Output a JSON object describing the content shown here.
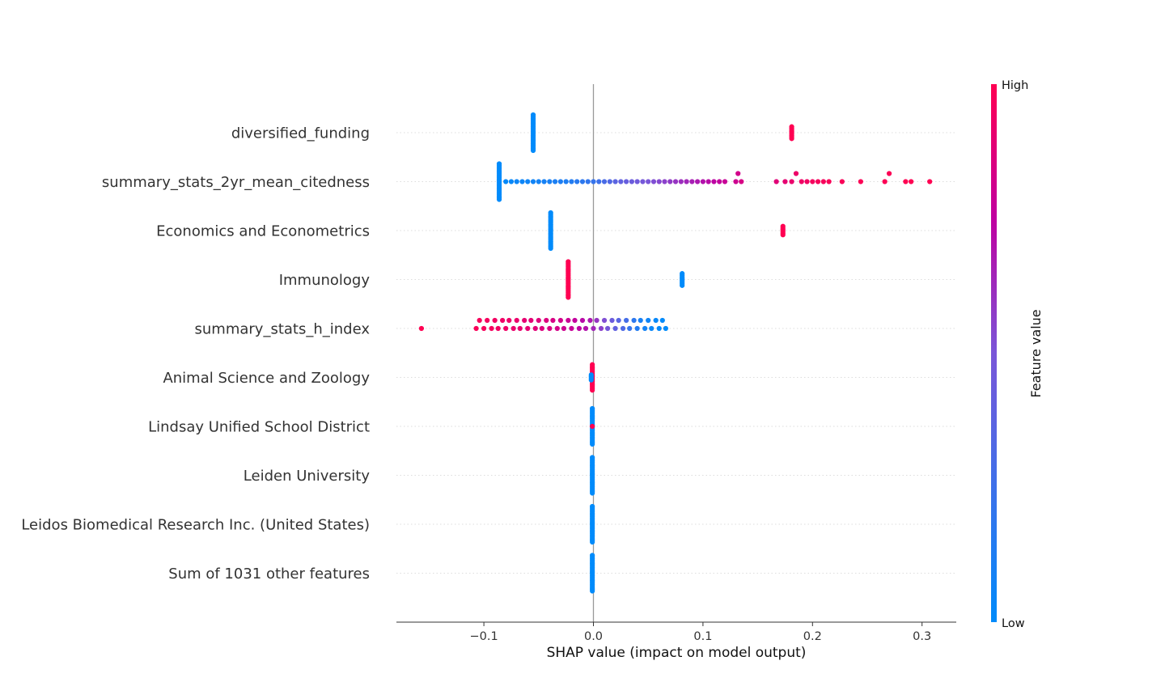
{
  "colors": {
    "low": "#008bfb",
    "high": "#ff0052",
    "axis": "#333333",
    "zero": "#999999",
    "grid": "#cccccc"
  },
  "chart_data": {
    "type": "scatter",
    "subtype": "shap-beeswarm",
    "xlabel": "SHAP value (impact on model output)",
    "xlim": [
      -0.18,
      0.33
    ],
    "xticks": [
      -0.1,
      0.0,
      0.1,
      0.2,
      0.3
    ],
    "xtick_labels": [
      "−0.1",
      "0.0",
      "0.1",
      "0.2",
      "0.3"
    ],
    "colorbar": {
      "title": "Feature value",
      "high_label": "High",
      "low_label": "Low"
    },
    "features": [
      {
        "name": "diversified_funding",
        "groups": [
          {
            "x": [
              -0.055
            ],
            "count": 22,
            "value": 0.0
          },
          {
            "x": [
              0.181
            ],
            "count": 8,
            "value": 1.0
          }
        ]
      },
      {
        "name": "summary_stats_2yr_mean_citedness",
        "groups": [
          {
            "x": [
              -0.086
            ],
            "count": 22,
            "value": 0.0
          }
        ],
        "points": [
          [
            -0.08,
            0.02
          ],
          [
            -0.075,
            0.03
          ],
          [
            -0.07,
            0.05
          ],
          [
            -0.065,
            0.05
          ],
          [
            -0.06,
            0.06
          ],
          [
            -0.055,
            0.07
          ],
          [
            -0.05,
            0.08
          ],
          [
            -0.045,
            0.09
          ],
          [
            -0.04,
            0.1
          ],
          [
            -0.035,
            0.11
          ],
          [
            -0.03,
            0.12
          ],
          [
            -0.025,
            0.12
          ],
          [
            -0.02,
            0.14
          ],
          [
            -0.015,
            0.16
          ],
          [
            -0.01,
            0.18
          ],
          [
            -0.005,
            0.2
          ],
          [
            0.0,
            0.22
          ],
          [
            0.005,
            0.25
          ],
          [
            0.01,
            0.3
          ],
          [
            0.015,
            0.33
          ],
          [
            0.02,
            0.37
          ],
          [
            0.025,
            0.4
          ],
          [
            0.03,
            0.42
          ],
          [
            0.035,
            0.44
          ],
          [
            0.04,
            0.46
          ],
          [
            0.045,
            0.48
          ],
          [
            0.05,
            0.5
          ],
          [
            0.055,
            0.52
          ],
          [
            0.06,
            0.54
          ],
          [
            0.065,
            0.56
          ],
          [
            0.07,
            0.58
          ],
          [
            0.075,
            0.6
          ],
          [
            0.08,
            0.62
          ],
          [
            0.085,
            0.64
          ],
          [
            0.09,
            0.66
          ],
          [
            0.095,
            0.68
          ],
          [
            0.1,
            0.7
          ],
          [
            0.105,
            0.72
          ],
          [
            0.11,
            0.74
          ],
          [
            0.115,
            0.76
          ],
          [
            0.12,
            0.78
          ],
          [
            0.13,
            0.8
          ],
          [
            0.132,
            0.82
          ],
          [
            0.135,
            0.84
          ],
          [
            0.167,
            0.88
          ],
          [
            0.175,
            0.9
          ],
          [
            0.181,
            0.92
          ],
          [
            0.185,
            0.93
          ],
          [
            0.19,
            0.94
          ],
          [
            0.195,
            0.95
          ],
          [
            0.2,
            0.96
          ],
          [
            0.205,
            0.97
          ],
          [
            0.21,
            0.97
          ],
          [
            0.215,
            0.98
          ],
          [
            0.227,
            0.98
          ],
          [
            0.244,
            0.99
          ],
          [
            0.266,
            0.99
          ],
          [
            0.27,
            0.99
          ],
          [
            0.285,
            1.0
          ],
          [
            0.29,
            1.0
          ],
          [
            0.307,
            1.0
          ]
        ]
      },
      {
        "name": "Economics and Econometrics",
        "groups": [
          {
            "x": [
              -0.039
            ],
            "count": 22,
            "value": 0.0
          },
          {
            "x": [
              0.173
            ],
            "count": 6,
            "value": 1.0
          }
        ]
      },
      {
        "name": "Immunology",
        "groups": [
          {
            "x": [
              -0.023
            ],
            "count": 22,
            "value": 1.0
          },
          {
            "x": [
              0.081
            ],
            "count": 8,
            "value": 0.0
          }
        ]
      },
      {
        "name": "summary_stats_h_index",
        "points": [
          [
            -0.157,
            1.0
          ],
          [
            -0.107,
            0.98
          ],
          [
            -0.104,
            0.97
          ],
          [
            -0.1,
            0.97
          ],
          [
            -0.097,
            0.96
          ],
          [
            -0.093,
            0.96
          ],
          [
            -0.09,
            0.95
          ],
          [
            -0.087,
            0.95
          ],
          [
            -0.083,
            0.94
          ],
          [
            -0.08,
            0.94
          ],
          [
            -0.077,
            0.93
          ],
          [
            -0.073,
            0.92
          ],
          [
            -0.07,
            0.92
          ],
          [
            -0.067,
            0.91
          ],
          [
            -0.063,
            0.9
          ],
          [
            -0.06,
            0.9
          ],
          [
            -0.057,
            0.89
          ],
          [
            -0.053,
            0.88
          ],
          [
            -0.05,
            0.87
          ],
          [
            -0.047,
            0.86
          ],
          [
            -0.043,
            0.86
          ],
          [
            -0.04,
            0.85
          ],
          [
            -0.037,
            0.84
          ],
          [
            -0.033,
            0.83
          ],
          [
            -0.03,
            0.82
          ],
          [
            -0.027,
            0.8
          ],
          [
            -0.023,
            0.79
          ],
          [
            -0.02,
            0.78
          ],
          [
            -0.017,
            0.76
          ],
          [
            -0.013,
            0.74
          ],
          [
            -0.01,
            0.72
          ],
          [
            -0.007,
            0.7
          ],
          [
            -0.003,
            0.68
          ],
          [
            0.0,
            0.64
          ],
          [
            0.003,
            0.6
          ],
          [
            0.007,
            0.56
          ],
          [
            0.01,
            0.52
          ],
          [
            0.013,
            0.48
          ],
          [
            0.017,
            0.44
          ],
          [
            0.02,
            0.4
          ],
          [
            0.023,
            0.36
          ],
          [
            0.027,
            0.32
          ],
          [
            0.03,
            0.28
          ],
          [
            0.033,
            0.22
          ],
          [
            0.037,
            0.18
          ],
          [
            0.04,
            0.14
          ],
          [
            0.043,
            0.1
          ],
          [
            0.047,
            0.08
          ],
          [
            0.05,
            0.06
          ],
          [
            0.053,
            0.04
          ],
          [
            0.057,
            0.03
          ],
          [
            0.06,
            0.02
          ],
          [
            0.063,
            0.01
          ],
          [
            0.066,
            0.0
          ]
        ]
      },
      {
        "name": "Animal Science and Zoology",
        "groups": [
          {
            "x": [
              -0.001
            ],
            "count": 16,
            "value": 1.0
          },
          {
            "x": [
              -0.002
            ],
            "count": 4,
            "value": 0.0
          }
        ]
      },
      {
        "name": "Lindsay Unified School District",
        "groups": [
          {
            "x": [
              -0.001
            ],
            "count": 22,
            "value": 0.0
          },
          {
            "x": [
              -0.001
            ],
            "count": 1,
            "value": 1.0
          }
        ]
      },
      {
        "name": "Leiden University",
        "groups": [
          {
            "x": [
              -0.001
            ],
            "count": 22,
            "value": 0.0
          }
        ]
      },
      {
        "name": "Leidos Biomedical Research Inc. (United States)",
        "groups": [
          {
            "x": [
              -0.001
            ],
            "count": 22,
            "value": 0.0
          }
        ]
      },
      {
        "name": "Sum of 1031 other features",
        "groups": [
          {
            "x": [
              -0.001
            ],
            "count": 22,
            "value": 0.0
          }
        ]
      }
    ]
  }
}
